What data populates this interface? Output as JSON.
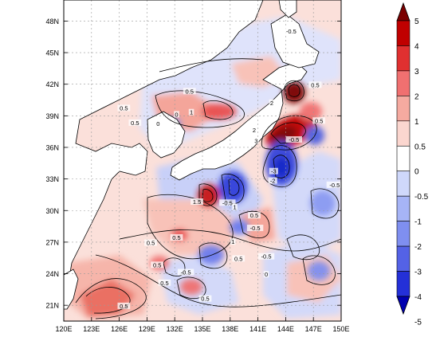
{
  "map": {
    "lat_labels": [
      "48N",
      "45N",
      "42N",
      "39N",
      "36N",
      "33N",
      "30N",
      "27N",
      "24N",
      "21N"
    ],
    "lon_labels": [
      "120E",
      "123E",
      "126E",
      "129E",
      "132E",
      "135E",
      "138E",
      "141E",
      "144E",
      "147E",
      "150E"
    ],
    "extent": {
      "lon_min": 120,
      "lon_max": 150,
      "lat_min": 19.5,
      "lat_max": 50
    },
    "contour_labels": [
      {
        "text": "-0.5",
        "lon": 144.6,
        "lat": 46.9
      },
      {
        "text": "0.5",
        "lon": 133.6,
        "lat": 41.2
      },
      {
        "text": "0.5",
        "lon": 126.5,
        "lat": 39.6
      },
      {
        "text": "0",
        "lon": 132.2,
        "lat": 39.0
      },
      {
        "text": "1",
        "lon": 133.8,
        "lat": 39.2
      },
      {
        "text": "0",
        "lon": 130.2,
        "lat": 38.1
      },
      {
        "text": "0.5",
        "lon": 127.7,
        "lat": 38.2
      },
      {
        "text": "0.5",
        "lon": 147.2,
        "lat": 41.8
      },
      {
        "text": "2",
        "lon": 142.5,
        "lat": 40.1
      },
      {
        "text": "2",
        "lon": 140.6,
        "lat": 37.5
      },
      {
        "text": "3",
        "lon": 140.8,
        "lat": 36.5
      },
      {
        "text": "-0.5",
        "lon": 144.9,
        "lat": 36.6
      },
      {
        "text": "0.5",
        "lon": 147.6,
        "lat": 38.4
      },
      {
        "text": "-3",
        "lon": 142.7,
        "lat": 33.6
      },
      {
        "text": "-2",
        "lon": 142.6,
        "lat": 32.7
      },
      {
        "text": "-0.5",
        "lon": 149.3,
        "lat": 32.3
      },
      {
        "text": "1.5",
        "lon": 134.4,
        "lat": 30.7
      },
      {
        "text": "-0.5",
        "lon": 137.7,
        "lat": 30.6
      },
      {
        "text": "1",
        "lon": 138.5,
        "lat": 30.2
      },
      {
        "text": "0.5",
        "lon": 140.6,
        "lat": 29.4
      },
      {
        "text": "-0.5",
        "lon": 140.7,
        "lat": 28.2
      },
      {
        "text": "1",
        "lon": 138.3,
        "lat": 26.9
      },
      {
        "text": "0.5",
        "lon": 129.4,
        "lat": 26.8
      },
      {
        "text": "0.5",
        "lon": 132.2,
        "lat": 27.3
      },
      {
        "text": "0.5",
        "lon": 138.9,
        "lat": 25.3
      },
      {
        "text": "-0.5",
        "lon": 141.9,
        "lat": 25.5
      },
      {
        "text": "0.5",
        "lon": 130.1,
        "lat": 24.7
      },
      {
        "text": "0.5",
        "lon": 130.9,
        "lat": 23.0
      },
      {
        "text": "0",
        "lon": 141.9,
        "lat": 23.8
      },
      {
        "text": "0.5",
        "lon": 135.3,
        "lat": 21.5
      },
      {
        "text": "-0.5",
        "lon": 133.2,
        "lat": 24.0
      },
      {
        "text": "0.5",
        "lon": 126.5,
        "lat": 20.8
      }
    ]
  },
  "colorbar": {
    "labels": [
      "5",
      "4",
      "3",
      "2",
      "1",
      "0.5",
      "0",
      "-0.5",
      "-1",
      "-2",
      "-3",
      "-4",
      "-5"
    ],
    "colors": [
      "#7a0000",
      "#c00000",
      "#e03030",
      "#f07070",
      "#f5aaa0",
      "#fbd6cf",
      "#ffffff",
      "#cfd8fb",
      "#a6b4f6",
      "#7f8ff0",
      "#5462e6",
      "#2430d8",
      "#0000b0"
    ]
  }
}
